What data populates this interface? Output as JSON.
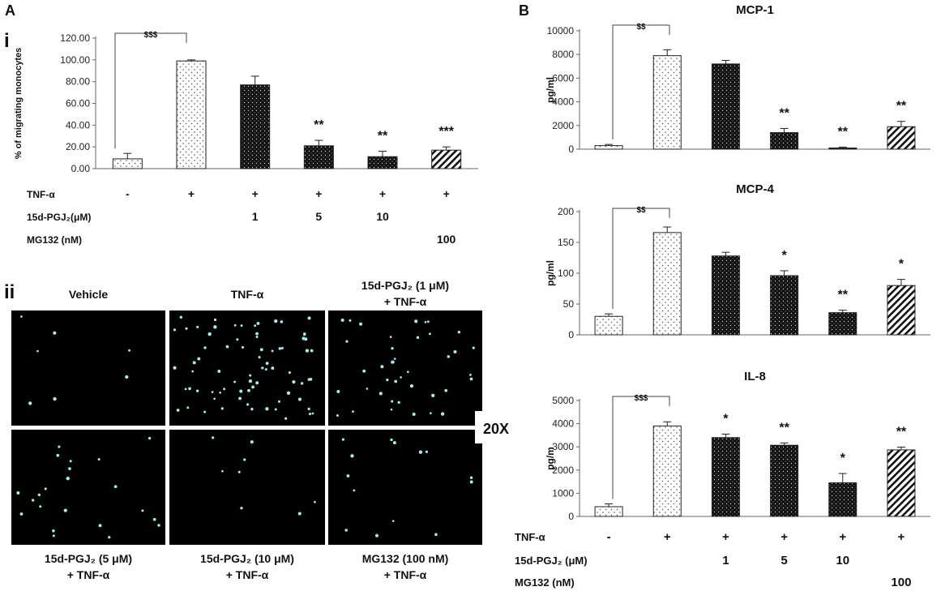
{
  "panel_a": {
    "letter": "A",
    "sub_i": "i",
    "sub_ii": "ii",
    "micro_labels_top": [
      {
        "line1": "Vehicle",
        "line2": ""
      },
      {
        "line1": "TNF-α",
        "line2": ""
      },
      {
        "line1": "15d-PGJ₂ (1 μM)",
        "line2": "+ TNF-α"
      }
    ],
    "micro_labels_bottom": [
      {
        "line1": "15d-PGJ₂ (5 μM)",
        "line2": "+ TNF-α"
      },
      {
        "line1": "15d-PGJ₂ (10 μM)",
        "line2": "+ TNF-α"
      },
      {
        "line1": "MG132 (100 nM)",
        "line2": "+ TNF-α"
      }
    ],
    "magnification": "20X",
    "cell_counts": [
      7,
      75,
      40,
      22,
      8,
      14
    ]
  },
  "panel_b": {
    "letter": "B"
  },
  "conditions_a": {
    "rows": [
      {
        "label": "TNF-α",
        "values": [
          "-",
          "+",
          "+",
          "+",
          "+",
          "+"
        ]
      },
      {
        "label": "15d-PGJ₂(μM)",
        "values": [
          "",
          "",
          "1",
          "5",
          "10",
          ""
        ]
      },
      {
        "label": "MG132 (nM)",
        "values": [
          "",
          "",
          "",
          "",
          "",
          "100"
        ]
      }
    ]
  },
  "conditions_b": {
    "rows": [
      {
        "label": "TNF-α",
        "values": [
          "-",
          "+",
          "+",
          "+",
          "+",
          "+"
        ]
      },
      {
        "label": "15d-PGJ₂ (μM)",
        "values": [
          "",
          "",
          "1",
          "5",
          "10",
          ""
        ]
      },
      {
        "label": "MG132 (nM)",
        "values": [
          "",
          "",
          "",
          "",
          "",
          "100"
        ]
      }
    ]
  },
  "chart_data": [
    {
      "id": "migration",
      "type": "bar",
      "title": "",
      "xlabel": "",
      "ylabel": "% of migrating monocytes",
      "categories": [
        "Vehicle",
        "TNF-α",
        "15d-PGJ2 1 μM + TNF-α",
        "15d-PGJ2 5 μM + TNF-α",
        "15d-PGJ2 10 μM + TNF-α",
        "MG132 100 nM + TNF-α"
      ],
      "values": [
        9,
        99,
        77,
        21,
        11,
        17
      ],
      "errors": [
        5,
        1,
        8,
        5,
        5,
        3
      ],
      "fills": [
        "sparse",
        "sparse",
        "dark",
        "dark",
        "dark",
        "hatch"
      ],
      "ylim": [
        0,
        120
      ],
      "yticks": [
        0,
        20,
        40,
        60,
        80,
        100,
        120
      ],
      "tick_labels": [
        "0.00",
        "20.00",
        "40.00",
        "60.00",
        "80.00",
        "100.00",
        "120.00"
      ],
      "significance": [
        "",
        "",
        "",
        "**",
        "**",
        "***"
      ],
      "bracket_label": "$$$"
    },
    {
      "id": "mcp1",
      "type": "bar",
      "title": "MCP-1",
      "xlabel": "",
      "ylabel": "pg/ml",
      "categories": [
        "Vehicle",
        "TNF-α",
        "15d-PGJ2 1 μM + TNF-α",
        "15d-PGJ2 5 μM + TNF-α",
        "15d-PGJ2 10 μM + TNF-α",
        "MG132 100 nM + TNF-α"
      ],
      "values": [
        300,
        7900,
        7200,
        1400,
        100,
        1900
      ],
      "errors": [
        100,
        500,
        300,
        350,
        80,
        450
      ],
      "fills": [
        "sparse",
        "sparse",
        "dark",
        "dark",
        "dark",
        "hatch"
      ],
      "ylim": [
        0,
        10000
      ],
      "yticks": [
        0,
        2000,
        4000,
        6000,
        8000,
        10000
      ],
      "tick_labels": [
        "0",
        "2000",
        "4000",
        "6000",
        "8000",
        "10000"
      ],
      "significance": [
        "",
        "",
        "",
        "**",
        "**",
        "**"
      ],
      "bracket_label": "$$"
    },
    {
      "id": "mcp4",
      "type": "bar",
      "title": "MCP-4",
      "xlabel": "",
      "ylabel": "pg/ml",
      "categories": [
        "Vehicle",
        "TNF-α",
        "15d-PGJ2 1 μM + TNF-α",
        "15d-PGJ2 5 μM + TNF-α",
        "15d-PGJ2 10 μM + TNF-α",
        "MG132 100 nM + TNF-α"
      ],
      "values": [
        30,
        166,
        128,
        96,
        36,
        80
      ],
      "errors": [
        4,
        9,
        6,
        8,
        4,
        10
      ],
      "fills": [
        "sparse",
        "sparse",
        "dark",
        "dark",
        "dark",
        "hatch"
      ],
      "ylim": [
        0,
        200
      ],
      "yticks": [
        0,
        50,
        100,
        150,
        200
      ],
      "tick_labels": [
        "0",
        "50",
        "100",
        "150",
        "200"
      ],
      "significance": [
        "",
        "",
        "",
        "*",
        "**",
        "*"
      ],
      "bracket_label": "$$"
    },
    {
      "id": "il8",
      "type": "bar",
      "title": "IL-8",
      "xlabel": "",
      "ylabel": "pg/m",
      "categories": [
        "Vehicle",
        "TNF-α",
        "15d-PGJ2 1 μM + TNF-α",
        "15d-PGJ2 5 μM + TNF-α",
        "15d-PGJ2 10 μM + TNF-α",
        "MG132 100 nM + TNF-α"
      ],
      "values": [
        420,
        3900,
        3400,
        3070,
        1450,
        2870
      ],
      "errors": [
        120,
        180,
        150,
        100,
        400,
        120
      ],
      "fills": [
        "sparse",
        "sparse",
        "dark",
        "dark",
        "dark",
        "hatch"
      ],
      "ylim": [
        0,
        5000
      ],
      "yticks": [
        0,
        1000,
        2000,
        3000,
        4000,
        5000
      ],
      "tick_labels": [
        "0",
        "1000",
        "2000",
        "3000",
        "4000",
        "5000"
      ],
      "significance": [
        "",
        "",
        "*",
        "**",
        "*",
        "**"
      ],
      "bracket_label": "$$$"
    }
  ]
}
